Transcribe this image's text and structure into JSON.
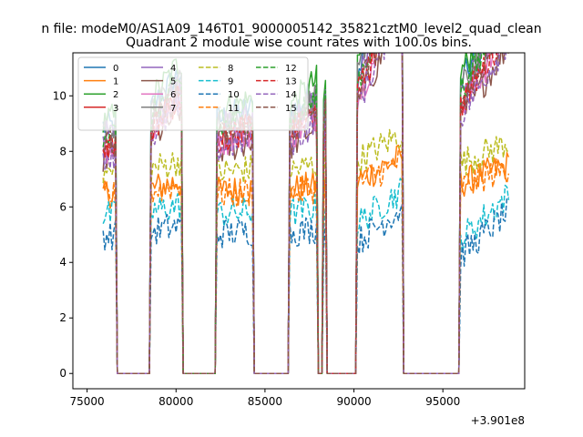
{
  "chart_data": {
    "type": "line",
    "suptitle": "n file: modeM0/AS1A09_146T01_9000005142_35821cztM0_level2_quad_clean",
    "title": "Quadrant 2 module wise count rates with 100.0s bins.",
    "xlabel": "",
    "ylabel": "",
    "x_offset_label": "+3.901e8",
    "xlim": [
      74200,
      99600
    ],
    "ylim": [
      -0.55,
      11.55
    ],
    "xticks": [
      75000,
      80000,
      85000,
      90000,
      95000
    ],
    "xtick_labels": [
      "75000",
      "80000",
      "85000",
      "90000",
      "95000"
    ],
    "yticks": [
      0,
      2,
      4,
      6,
      8,
      10
    ],
    "ytick_labels": [
      "0",
      "2",
      "4",
      "6",
      "8",
      "10"
    ],
    "legend_position": "upper-left",
    "bin_seconds": 100,
    "observation_segments": [
      [
        75900,
        76600
      ],
      [
        78600,
        80300
      ],
      [
        82300,
        84300
      ],
      [
        86400,
        87900
      ],
      [
        88300,
        88400
      ],
      [
        90200,
        92700
      ],
      [
        96000,
        98700
      ]
    ],
    "series": [
      {
        "name": "0",
        "level": 8.9,
        "color": "#1f77b4",
        "dash": "solid"
      },
      {
        "name": "1",
        "level": 6.5,
        "color": "#ff7f0e",
        "dash": "solid"
      },
      {
        "name": "2",
        "level": 9.2,
        "color": "#2ca02c",
        "dash": "solid"
      },
      {
        "name": "3",
        "level": 8.3,
        "color": "#d62728",
        "dash": "solid"
      },
      {
        "name": "4",
        "level": 8.6,
        "color": "#9467bd",
        "dash": "solid"
      },
      {
        "name": "5",
        "level": 7.8,
        "color": "#8c564b",
        "dash": "solid"
      },
      {
        "name": "6",
        "level": 8.1,
        "color": "#e377c2",
        "dash": "solid"
      },
      {
        "name": "7",
        "level": 8.7,
        "color": "#7f7f7f",
        "dash": "solid"
      },
      {
        "name": "8",
        "level": 7.2,
        "color": "#bcbd22",
        "dash": "dashed"
      },
      {
        "name": "9",
        "level": 5.7,
        "color": "#17becf",
        "dash": "dashed"
      },
      {
        "name": "10",
        "level": 5.0,
        "color": "#1f77b4",
        "dash": "dashed"
      },
      {
        "name": "11",
        "level": 6.4,
        "color": "#ff7f0e",
        "dash": "dashed"
      },
      {
        "name": "12",
        "level": 8.6,
        "color": "#2ca02c",
        "dash": "dashed"
      },
      {
        "name": "13",
        "level": 8.2,
        "color": "#d62728",
        "dash": "dashed"
      },
      {
        "name": "14",
        "level": 7.9,
        "color": "#9467bd",
        "dash": "dashed"
      },
      {
        "name": "15",
        "level": 8.3,
        "color": "#8c564b",
        "dash": "dashed"
      }
    ]
  }
}
